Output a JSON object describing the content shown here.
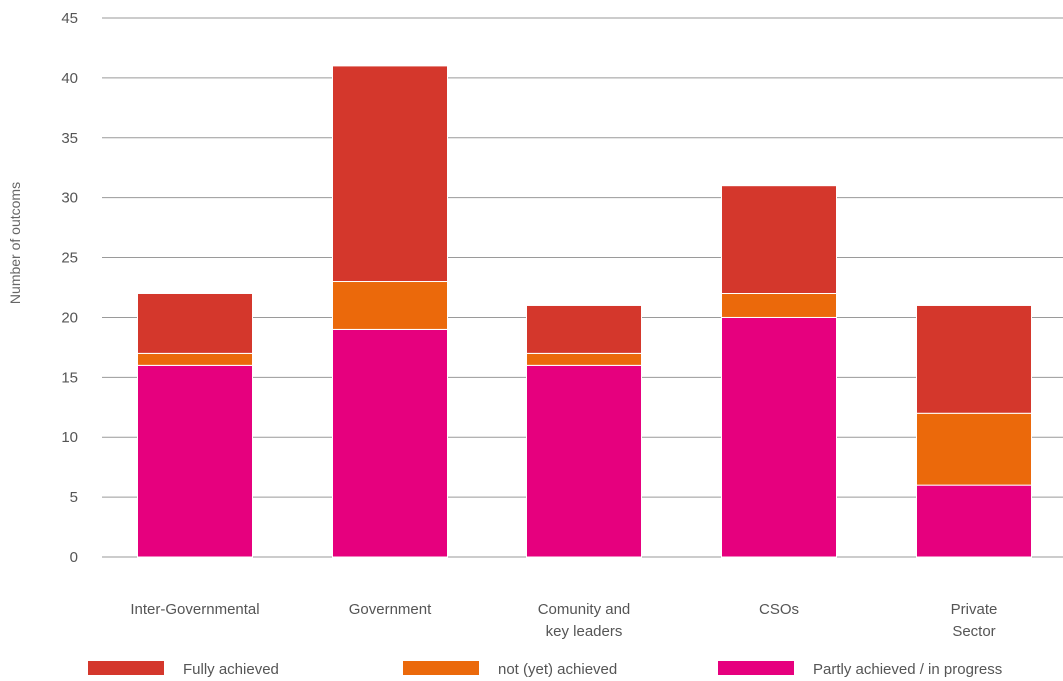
{
  "chart_data": {
    "type": "bar",
    "stacked": true,
    "title": "",
    "xlabel": "",
    "ylabel": "Number of outcoms",
    "ylim": [
      0,
      45
    ],
    "yticks": [
      0,
      5,
      10,
      15,
      20,
      25,
      30,
      35,
      40,
      45
    ],
    "grid": "horizontal",
    "legend_position": "bottom",
    "categories": [
      [
        "Inter-Governmental"
      ],
      [
        "Government"
      ],
      [
        "Comunity and",
        "key leaders"
      ],
      [
        "CSOs"
      ],
      [
        "Private",
        "Sector"
      ]
    ],
    "series": [
      {
        "name": "Partly achieved / in progress",
        "color": "#e6007e",
        "values": [
          16,
          19,
          16,
          20,
          6
        ]
      },
      {
        "name": "not (yet) achieved",
        "color": "#eb690b",
        "values": [
          1,
          4,
          1,
          2,
          6
        ]
      },
      {
        "name": "Fully achieved",
        "color": "#d4372c",
        "values": [
          5,
          18,
          4,
          9,
          9
        ]
      }
    ],
    "legend_order": [
      "Fully achieved",
      "not (yet) achieved",
      "Partly achieved / in progress"
    ]
  }
}
